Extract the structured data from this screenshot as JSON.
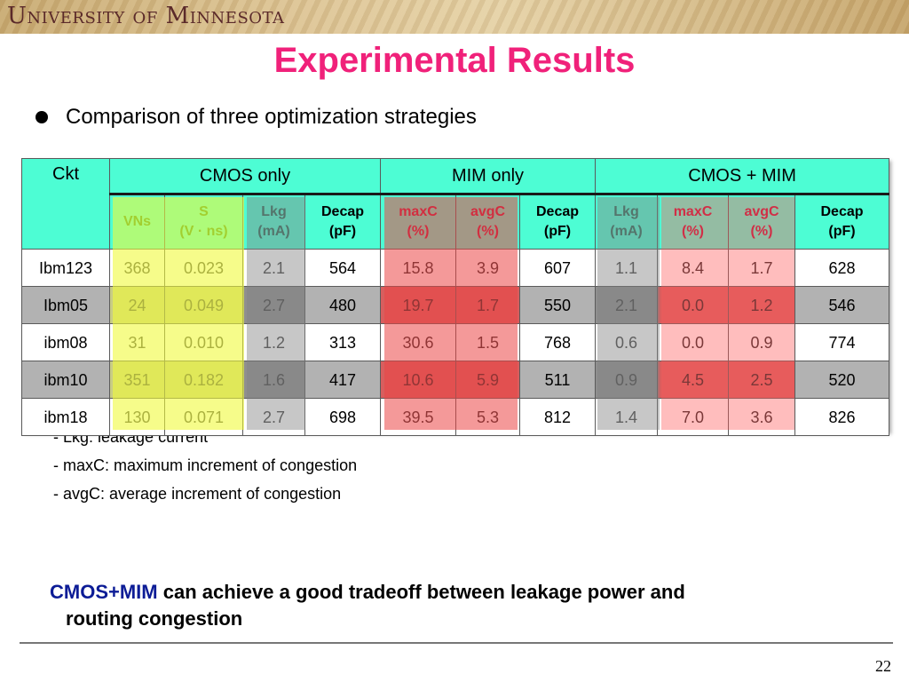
{
  "header": {
    "university": "University of Minnesota"
  },
  "slide": {
    "title": "Experimental Results",
    "bullet": "Comparison of three optimization strategies"
  },
  "table": {
    "ckt_header": "Ckt",
    "groups": [
      "CMOS only",
      "MIM only",
      "CMOS + MIM"
    ],
    "subheaders": [
      {
        "line1": "VNs",
        "line2": ""
      },
      {
        "line1": "S",
        "line2": "(V · ns)"
      },
      {
        "line1": "Lkg",
        "line2": "(mA)"
      },
      {
        "line1": "Decap",
        "line2": "(pF)"
      },
      {
        "line1": "maxC",
        "line2": "(%)"
      },
      {
        "line1": "avgC",
        "line2": "(%)"
      },
      {
        "line1": "Decap",
        "line2": "(pF)"
      },
      {
        "line1": "Lkg",
        "line2": "(mA)"
      },
      {
        "line1": "maxC",
        "line2": "(%)"
      },
      {
        "line1": "avgC",
        "line2": "(%)"
      },
      {
        "line1": "Decap",
        "line2": "(pF)"
      }
    ],
    "rows": [
      [
        "Ibm123",
        "368",
        "0.023",
        "2.1",
        "564",
        "15.8",
        "3.9",
        "607",
        "1.1",
        "8.4",
        "1.7",
        "628"
      ],
      [
        "Ibm05",
        "24",
        "0.049",
        "2.7",
        "480",
        "19.7",
        "1.7",
        "550",
        "2.1",
        "0.0",
        "1.2",
        "546"
      ],
      [
        "ibm08",
        "31",
        "0.010",
        "1.2",
        "313",
        "30.6",
        "1.5",
        "768",
        "0.6",
        "0.0",
        "0.9",
        "774"
      ],
      [
        "ibm10",
        "351",
        "0.182",
        "1.6",
        "417",
        "10.6",
        "5.9",
        "511",
        "0.9",
        "4.5",
        "2.5",
        "520"
      ],
      [
        "ibm18",
        "130",
        "0.071",
        "2.7",
        "698",
        "39.5",
        "5.3",
        "812",
        "1.4",
        "7.0",
        "3.6",
        "826"
      ]
    ]
  },
  "notes": [
    "- Lkg: leakage current",
    "- maxC: maximum increment of congestion",
    "- avgC: average increment of congestion"
  ],
  "conclusion": {
    "emphasis": "CMOS+MIM",
    "rest": " can achieve a good tradeoff between leakage power and",
    "line2": "routing congestion"
  },
  "footer": {
    "page_number": "22"
  },
  "colors": {
    "title": "#f0217a",
    "header_cyan": "#4dfdd4",
    "highlight_yellow": "#f0fa3c",
    "highlight_red": "#eb4646",
    "conclusion_emphasis": "#0c1c96"
  }
}
